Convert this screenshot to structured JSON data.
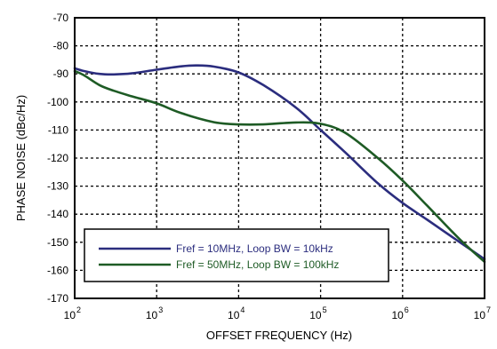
{
  "chart_data": {
    "type": "line",
    "xlabel": "OFFSET FREQUENCY (Hz)",
    "ylabel": "PHASE NOISE (dBc/Hz)",
    "x_scale": "log",
    "xlim": [
      100,
      10000000
    ],
    "ylim": [
      -170,
      -70
    ],
    "grid": true,
    "legend_position": "lower-left",
    "x_tick_values": [
      100,
      1000,
      10000,
      100000,
      1000000,
      10000000
    ],
    "x_ticks": [
      {
        "base": "10",
        "exp": "2"
      },
      {
        "base": "10",
        "exp": "3"
      },
      {
        "base": "10",
        "exp": "4"
      },
      {
        "base": "10",
        "exp": "5"
      },
      {
        "base": "10",
        "exp": "6"
      },
      {
        "base": "10",
        "exp": "7"
      }
    ],
    "y_ticks": [
      "-70",
      "-80",
      "-90",
      "-100",
      "-110",
      "-120",
      "-130",
      "-140",
      "-150",
      "-160",
      "-170"
    ],
    "y_tick_values": [
      -70,
      -80,
      -90,
      -100,
      -110,
      -120,
      -130,
      -140,
      -150,
      -160,
      -170
    ],
    "series": [
      {
        "name": "Fref = 10MHz, Loop BW = 10kHz",
        "color": "#2b2d7e",
        "points": [
          [
            100,
            -88
          ],
          [
            130,
            -89
          ],
          [
            200,
            -90
          ],
          [
            300,
            -90.2
          ],
          [
            500,
            -89.8
          ],
          [
            1000,
            -88.5
          ],
          [
            2000,
            -87.3
          ],
          [
            3000,
            -87
          ],
          [
            5000,
            -87.4
          ],
          [
            10000,
            -89.5
          ],
          [
            20000,
            -94
          ],
          [
            50000,
            -102
          ],
          [
            100000,
            -110
          ],
          [
            200000,
            -118
          ],
          [
            500000,
            -129
          ],
          [
            1000000,
            -136
          ],
          [
            2000000,
            -142
          ],
          [
            5000000,
            -150
          ],
          [
            10000000,
            -156
          ]
        ]
      },
      {
        "name": "Fref = 50MHz, Loop BW = 100kHz",
        "color": "#1e5b25",
        "points": [
          [
            100,
            -89
          ],
          [
            130,
            -90.5
          ],
          [
            200,
            -94
          ],
          [
            300,
            -96
          ],
          [
            500,
            -98
          ],
          [
            1000,
            -100.5
          ],
          [
            2000,
            -104
          ],
          [
            5000,
            -107.2
          ],
          [
            10000,
            -108
          ],
          [
            20000,
            -108
          ],
          [
            50000,
            -107.3
          ],
          [
            100000,
            -107.8
          ],
          [
            200000,
            -111
          ],
          [
            500000,
            -120
          ],
          [
            1000000,
            -128
          ],
          [
            2000000,
            -137
          ],
          [
            5000000,
            -149
          ],
          [
            10000000,
            -157
          ]
        ]
      }
    ]
  }
}
